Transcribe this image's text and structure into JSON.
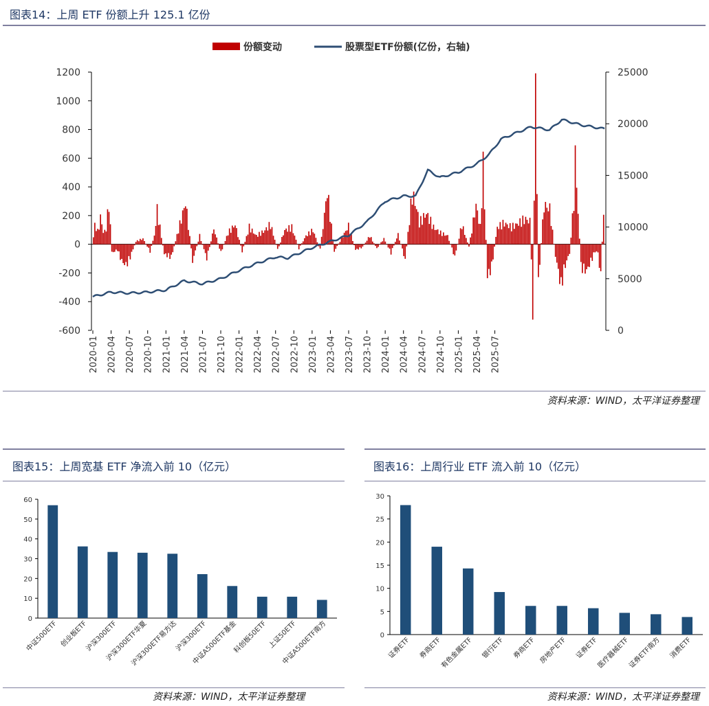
{
  "figures": {
    "fig14": {
      "title": "图表14：上周 ETF 份额上升 125.1 亿份",
      "source": "资料来源：WIND，太平洋证券整理"
    },
    "fig15": {
      "title": "图表15：上周宽基 ETF 净流入前 10（亿元）",
      "source": "资料来源：WIND，太平洋证券整理"
    },
    "fig16": {
      "title": "图表16：上周行业 ETF 流入前 10（亿元）",
      "source": "资料来源：WIND，太平洋证券整理"
    }
  },
  "colors": {
    "bar_red": "#c00000",
    "line_blue": "#2e4e74",
    "bar_blue": "#1f4e79",
    "title_blue": "#1f3864"
  },
  "chart_data": [
    {
      "id": "fig14",
      "type": "bar+line",
      "legend": [
        "份额变动",
        "股票型ETF份额(亿份，右轴)"
      ],
      "y_left_lim": [
        -600,
        1200
      ],
      "y_left_ticks": [
        "1200",
        "1000",
        "800",
        "600",
        "400",
        "200",
        "0",
        "-200",
        "-400",
        "-600"
      ],
      "y_right_lim": [
        0,
        25000
      ],
      "y_right_ticks": [
        "25000",
        "20000",
        "15000",
        "10000",
        "5000",
        "0"
      ],
      "x_ticks": [
        "2020-01",
        "2020-04",
        "2020-07",
        "2020-10",
        "2021-01",
        "2021-04",
        "2021-07",
        "2021-10",
        "2022-01",
        "2022-04",
        "2022-07",
        "2022-10",
        "2023-01",
        "2023-04",
        "2023-07",
        "2023-10",
        "2024-01",
        "2024-04",
        "2024-07",
        "2024-10",
        "2025-01",
        "2025-04",
        "2025-07"
      ],
      "weekly_bar_keypoints": [
        [
          0,
          50
        ],
        [
          1,
          140
        ],
        [
          3,
          90
        ],
        [
          5,
          180
        ],
        [
          6,
          160
        ],
        [
          7,
          80
        ],
        [
          9,
          110
        ],
        [
          11,
          300
        ],
        [
          13,
          -60
        ],
        [
          17,
          -40
        ],
        [
          20,
          -120
        ],
        [
          23,
          -150
        ],
        [
          26,
          -90
        ],
        [
          30,
          20
        ],
        [
          35,
          40
        ],
        [
          40,
          -50
        ],
        [
          43,
          60
        ],
        [
          45,
          240
        ],
        [
          50,
          -70
        ],
        [
          55,
          -90
        ],
        [
          60,
          100
        ],
        [
          65,
          300
        ],
        [
          70,
          -120
        ],
        [
          75,
          60
        ],
        [
          80,
          -100
        ],
        [
          85,
          110
        ],
        [
          90,
          -60
        ],
        [
          95,
          80
        ],
        [
          100,
          140
        ],
        [
          105,
          -50
        ],
        [
          110,
          120
        ],
        [
          115,
          60
        ],
        [
          120,
          90
        ],
        [
          125,
          140
        ],
        [
          130,
          -40
        ],
        [
          135,
          100
        ],
        [
          140,
          120
        ],
        [
          145,
          -30
        ],
        [
          150,
          60
        ],
        [
          155,
          100
        ],
        [
          160,
          -40
        ],
        [
          165,
          380
        ],
        [
          170,
          -50
        ],
        [
          175,
          40
        ],
        [
          180,
          130
        ],
        [
          185,
          -40
        ],
        [
          190,
          -20
        ],
        [
          195,
          60
        ],
        [
          200,
          -30
        ],
        [
          205,
          40
        ],
        [
          210,
          -60
        ],
        [
          215,
          70
        ],
        [
          220,
          -110
        ],
        [
          225,
          360
        ],
        [
          228,
          260
        ],
        [
          230,
          150
        ],
        [
          235,
          220
        ],
        [
          240,
          120
        ],
        [
          245,
          80
        ],
        [
          250,
          60
        ],
        [
          255,
          -90
        ],
        [
          260,
          140
        ],
        [
          265,
          -20
        ],
        [
          270,
          280
        ],
        [
          273,
          120
        ],
        [
          275,
          550
        ],
        [
          278,
          -230
        ],
        [
          281,
          -160
        ],
        [
          285,
          120
        ],
        [
          290,
          150
        ],
        [
          295,
          120
        ],
        [
          300,
          150
        ],
        [
          305,
          180
        ],
        [
          308,
          160
        ],
        [
          310,
          -440
        ],
        [
          311,
          380
        ],
        [
          312,
          1110
        ],
        [
          313,
          360
        ],
        [
          314,
          -260
        ],
        [
          318,
          280
        ],
        [
          322,
          250
        ],
        [
          326,
          -80
        ],
        [
          330,
          -300
        ],
        [
          332,
          -180
        ],
        [
          336,
          -60
        ],
        [
          339,
          300
        ],
        [
          340,
          620
        ],
        [
          344,
          -160
        ],
        [
          348,
          -190
        ],
        [
          351,
          -120
        ],
        [
          354,
          -50
        ],
        [
          356,
          -60
        ],
        [
          358,
          -240
        ],
        [
          360,
          270
        ]
      ],
      "line_keypoints_by_month": [
        [
          0,
          3250
        ],
        [
          3,
          3700
        ],
        [
          6,
          3600
        ],
        [
          9,
          3700
        ],
        [
          12,
          3900
        ],
        [
          15,
          4800
        ],
        [
          18,
          4500
        ],
        [
          21,
          5000
        ],
        [
          24,
          5800
        ],
        [
          27,
          6500
        ],
        [
          30,
          7100
        ],
        [
          32,
          7000
        ],
        [
          34,
          7500
        ],
        [
          36,
          8000
        ],
        [
          39,
          8600
        ],
        [
          42,
          9200
        ],
        [
          45,
          10500
        ],
        [
          48,
          12500
        ],
        [
          51,
          13000
        ],
        [
          53,
          13000
        ],
        [
          55,
          15500
        ],
        [
          57,
          14800
        ],
        [
          60,
          15300
        ],
        [
          63,
          16100
        ],
        [
          65,
          17000
        ],
        [
          67,
          18500
        ],
        [
          69,
          19000
        ],
        [
          72,
          19700
        ],
        [
          75,
          19400
        ],
        [
          77,
          20400
        ],
        [
          80,
          19900
        ],
        [
          82,
          19700
        ],
        [
          83,
          19600
        ],
        [
          84,
          19500
        ]
      ]
    },
    {
      "id": "fig15",
      "type": "bar",
      "ylim": [
        0,
        60
      ],
      "y_ticks": [
        "60",
        "50",
        "40",
        "30",
        "20",
        "10",
        "0"
      ],
      "categories": [
        "中证500ETF",
        "创业板ETF",
        "沪深300ETF",
        "沪深300ETF华夏",
        "沪深300ETF易方达",
        "沪深300ETF",
        "中证A500ETF基金",
        "科创板50ETF",
        "上证50ETF",
        "中证A500ETF南方"
      ],
      "values": [
        57,
        36.2,
        33.4,
        33,
        32.5,
        22.2,
        16.2,
        10.8,
        10.8,
        9.2
      ]
    },
    {
      "id": "fig16",
      "type": "bar",
      "ylim": [
        0,
        30
      ],
      "y_ticks": [
        "30",
        "25",
        "20",
        "15",
        "10",
        "5",
        "0"
      ],
      "categories": [
        "证券ETF",
        "券商ETF",
        "有色金属ETF",
        "银行ETF",
        "券商ETF",
        "房地产ETF",
        "证券ETF",
        "医疗器械ETF",
        "证券ETF南方",
        "消费ETF"
      ],
      "values": [
        28,
        19,
        14.3,
        9.2,
        6.2,
        6.2,
        5.7,
        4.7,
        4.4,
        3.8
      ]
    }
  ]
}
